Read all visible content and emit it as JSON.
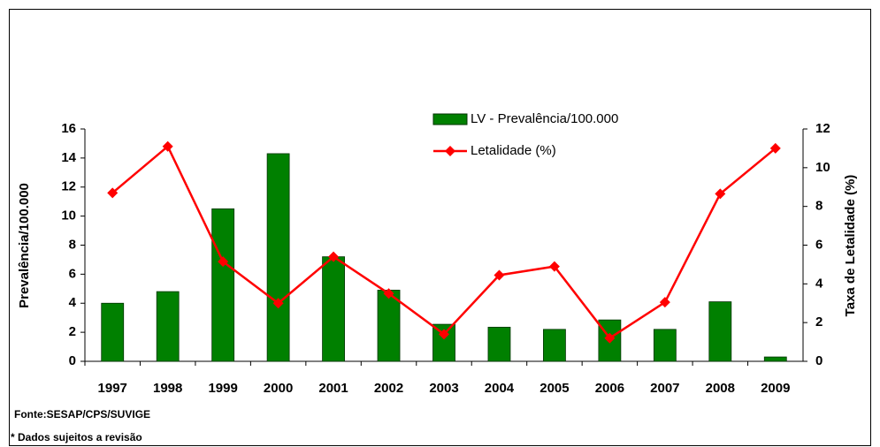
{
  "chart_data": {
    "type": "bar_line",
    "categories": [
      "1997",
      "1998",
      "1999",
      "2000",
      "2001",
      "2002",
      "2003",
      "2004",
      "2005",
      "2006",
      "2007",
      "2008",
      "2009"
    ],
    "series": [
      {
        "name": "LV - Prevalência/100.000",
        "type": "bar",
        "color": "#008000",
        "axis": "y",
        "values": [
          4.0,
          4.8,
          10.5,
          14.3,
          7.2,
          4.9,
          2.55,
          2.35,
          2.2,
          2.85,
          2.2,
          4.1,
          0.3
        ]
      },
      {
        "name": "Letalidade (%)",
        "type": "line",
        "color": "#ff0000",
        "axis": "y2",
        "values": [
          8.7,
          11.1,
          5.15,
          3.0,
          5.4,
          3.5,
          1.4,
          4.45,
          4.9,
          1.2,
          3.05,
          8.65,
          11.0
        ]
      }
    ],
    "ylabel": "Prevalência/100.000",
    "y2label": "Taxa de Letalidade (%)",
    "ylim": [
      0,
      16
    ],
    "yticks": [
      0,
      2,
      4,
      6,
      8,
      10,
      12,
      14,
      16
    ],
    "y2lim": [
      0,
      12
    ],
    "y2ticks": [
      0,
      2,
      4,
      6,
      8,
      10,
      12
    ],
    "grid": false,
    "notes": [
      "Fonte:SESAP/CPS/SUVIGE",
      "* Dados sujeitos a revisão"
    ]
  }
}
